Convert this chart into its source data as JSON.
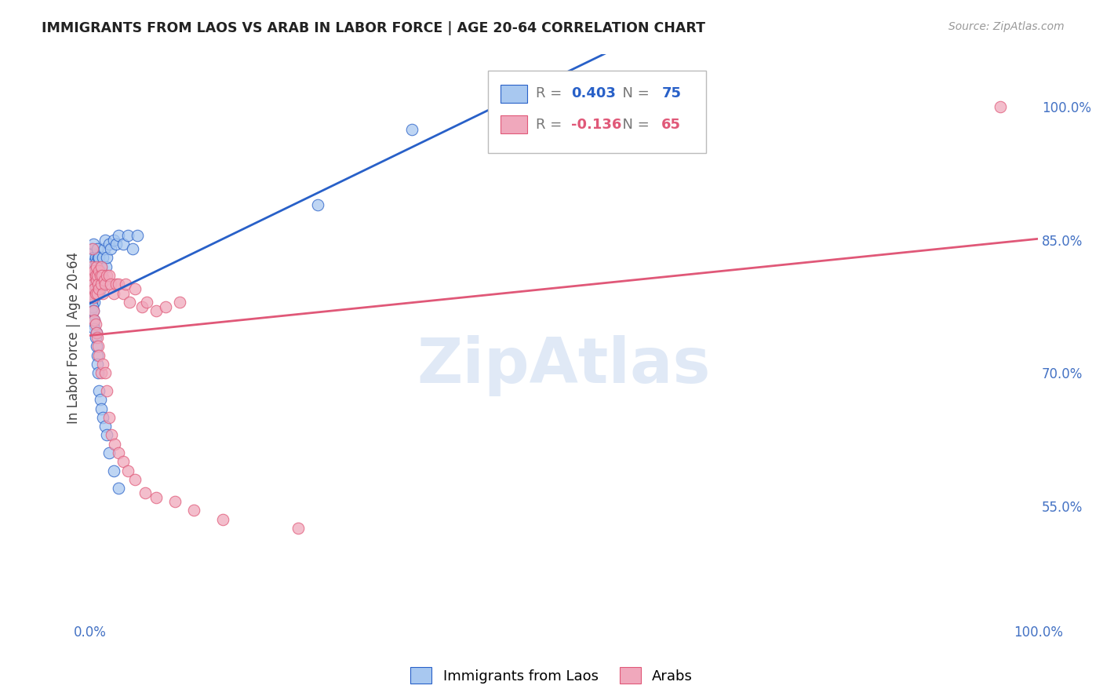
{
  "title": "IMMIGRANTS FROM LAOS VS ARAB IN LABOR FORCE | AGE 20-64 CORRELATION CHART",
  "source_text": "Source: ZipAtlas.com",
  "ylabel": "In Labor Force | Age 20-64",
  "r_laos": 0.403,
  "n_laos": 75,
  "r_arab": -0.136,
  "n_arab": 65,
  "xlim": [
    0.0,
    1.0
  ],
  "ylim": [
    0.42,
    1.06
  ],
  "color_laos": "#a8c8f0",
  "color_arab": "#f0a8bc",
  "trendline_color_laos": "#2860c8",
  "trendline_color_arab": "#e05878",
  "watermark_text": "ZipAtlas",
  "watermark_color": "#c8d8f0",
  "background_color": "#ffffff",
  "grid_color": "#d8d8d8",
  "axis_label_color": "#4472c4",
  "laos_x": [
    0.001,
    0.001,
    0.002,
    0.002,
    0.002,
    0.003,
    0.003,
    0.003,
    0.003,
    0.004,
    0.004,
    0.004,
    0.004,
    0.005,
    0.005,
    0.005,
    0.005,
    0.006,
    0.006,
    0.006,
    0.007,
    0.007,
    0.007,
    0.008,
    0.008,
    0.008,
    0.009,
    0.009,
    0.01,
    0.01,
    0.01,
    0.011,
    0.011,
    0.012,
    0.012,
    0.013,
    0.014,
    0.015,
    0.016,
    0.017,
    0.018,
    0.02,
    0.022,
    0.025,
    0.028,
    0.03,
    0.035,
    0.04,
    0.045,
    0.05,
    0.001,
    0.002,
    0.003,
    0.003,
    0.004,
    0.004,
    0.005,
    0.005,
    0.006,
    0.007,
    0.007,
    0.008,
    0.008,
    0.009,
    0.01,
    0.011,
    0.012,
    0.014,
    0.016,
    0.018,
    0.02,
    0.025,
    0.03,
    0.24,
    0.34
  ],
  "laos_y": [
    0.8,
    0.82,
    0.81,
    0.825,
    0.84,
    0.79,
    0.805,
    0.82,
    0.835,
    0.8,
    0.815,
    0.83,
    0.845,
    0.78,
    0.795,
    0.81,
    0.825,
    0.8,
    0.815,
    0.83,
    0.79,
    0.81,
    0.825,
    0.8,
    0.82,
    0.84,
    0.81,
    0.83,
    0.79,
    0.81,
    0.83,
    0.795,
    0.815,
    0.8,
    0.82,
    0.81,
    0.83,
    0.84,
    0.85,
    0.82,
    0.83,
    0.845,
    0.84,
    0.85,
    0.845,
    0.855,
    0.845,
    0.855,
    0.84,
    0.855,
    0.77,
    0.78,
    0.76,
    0.775,
    0.77,
    0.755,
    0.76,
    0.75,
    0.74,
    0.745,
    0.73,
    0.72,
    0.71,
    0.7,
    0.68,
    0.67,
    0.66,
    0.65,
    0.64,
    0.63,
    0.61,
    0.59,
    0.57,
    0.89,
    0.975
  ],
  "arab_x": [
    0.001,
    0.002,
    0.002,
    0.003,
    0.003,
    0.004,
    0.004,
    0.005,
    0.005,
    0.006,
    0.006,
    0.007,
    0.007,
    0.008,
    0.008,
    0.009,
    0.01,
    0.01,
    0.011,
    0.012,
    0.012,
    0.013,
    0.014,
    0.015,
    0.016,
    0.018,
    0.02,
    0.022,
    0.025,
    0.028,
    0.03,
    0.035,
    0.038,
    0.042,
    0.048,
    0.055,
    0.06,
    0.07,
    0.08,
    0.095,
    0.004,
    0.005,
    0.006,
    0.007,
    0.008,
    0.009,
    0.01,
    0.012,
    0.014,
    0.016,
    0.018,
    0.02,
    0.023,
    0.026,
    0.03,
    0.035,
    0.04,
    0.048,
    0.058,
    0.07,
    0.09,
    0.11,
    0.14,
    0.22,
    0.96
  ],
  "arab_y": [
    0.79,
    0.82,
    0.805,
    0.84,
    0.81,
    0.785,
    0.8,
    0.815,
    0.795,
    0.81,
    0.79,
    0.805,
    0.82,
    0.79,
    0.81,
    0.8,
    0.815,
    0.795,
    0.81,
    0.8,
    0.82,
    0.81,
    0.79,
    0.805,
    0.8,
    0.81,
    0.81,
    0.8,
    0.79,
    0.8,
    0.8,
    0.79,
    0.8,
    0.78,
    0.795,
    0.775,
    0.78,
    0.77,
    0.775,
    0.78,
    0.77,
    0.76,
    0.755,
    0.745,
    0.74,
    0.73,
    0.72,
    0.7,
    0.71,
    0.7,
    0.68,
    0.65,
    0.63,
    0.62,
    0.61,
    0.6,
    0.59,
    0.58,
    0.565,
    0.56,
    0.555,
    0.545,
    0.535,
    0.525,
    1.0
  ]
}
